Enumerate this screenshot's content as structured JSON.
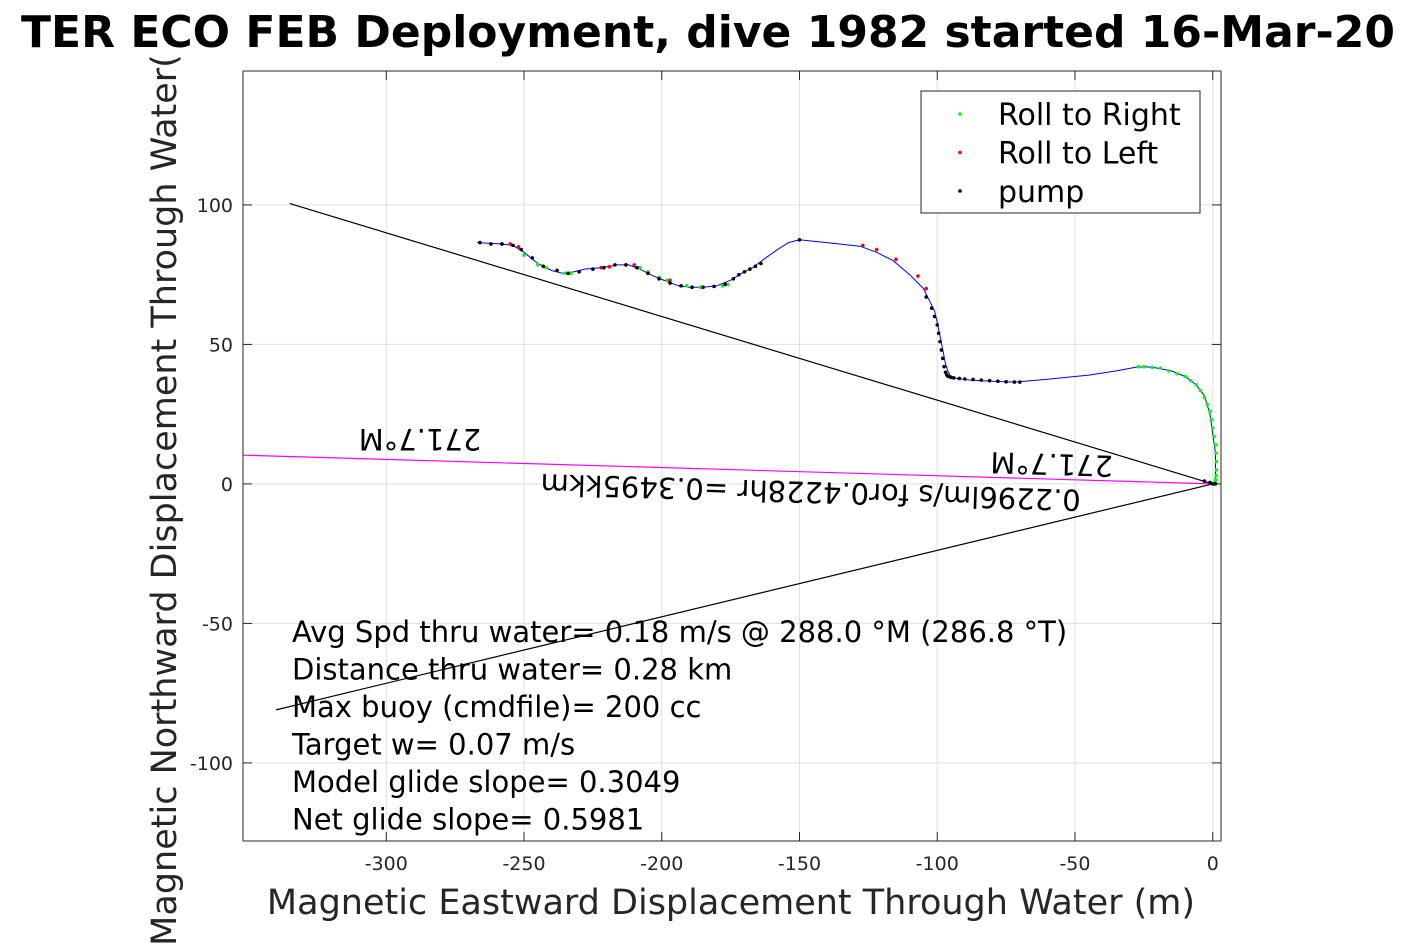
{
  "chart_data": {
    "type": "line",
    "title": "TER ECO FEB Deployment, dive 1982 started 16-Mar-20",
    "xlabel": "Magnetic Eastward Displacement Through Water (m)",
    "ylabel": "Magnetic Northward Displacement Through Water(",
    "xlim": [
      -352,
      3
    ],
    "ylim": [
      -128,
      148
    ],
    "xticks": [
      -300,
      -250,
      -200,
      -150,
      -100,
      -50,
      0
    ],
    "yticks": [
      -100,
      -50,
      0,
      50,
      100
    ],
    "xtick_labels": [
      "-300",
      "-250",
      "-200",
      "-150",
      "-100",
      "-50",
      "0"
    ],
    "ytick_labels": [
      "-100",
      "-50",
      "0",
      "50",
      "100"
    ],
    "grid": true,
    "legend_position": "top-right",
    "legend": [
      {
        "label": "Roll to Right",
        "color": "#00ff00"
      },
      {
        "label": "Roll to Left",
        "color": "#ff0000"
      },
      {
        "label": "pump",
        "color": "#000000"
      }
    ],
    "track_color": "#0000ff",
    "track": {
      "x": [
        -267,
        -258,
        -254,
        -250,
        -245,
        -240,
        -236,
        -232,
        -228,
        -222,
        -216,
        -212,
        -208,
        -203,
        -198,
        -194,
        -190,
        -185,
        -180,
        -175,
        -171,
        -167,
        -163,
        -158,
        -154,
        -150,
        -145,
        -140,
        -134,
        -128,
        -122,
        -116,
        -110,
        -105,
        -103,
        -101,
        -100,
        -99,
        -98,
        -97,
        -96,
        -95,
        -93,
        -88,
        -80,
        -72,
        -60,
        -45,
        -35,
        -28,
        -24,
        -20,
        -15,
        -10,
        -6,
        -3,
        -1,
        0,
        1,
        1,
        1,
        0
      ],
      "y": [
        86.5,
        86,
        85.5,
        83,
        79,
        76.5,
        75.5,
        76,
        77,
        77.5,
        78.5,
        78.5,
        77,
        74.5,
        72.5,
        71,
        70.5,
        70.5,
        71,
        73,
        75.5,
        77.5,
        80.5,
        84,
        86.5,
        87.5,
        87,
        86.5,
        85.8,
        85.2,
        83,
        80,
        75,
        70,
        66,
        62,
        58,
        53,
        48,
        43,
        40,
        38.5,
        37.8,
        37.2,
        36.8,
        36.5,
        37.5,
        39,
        40.5,
        41.8,
        42,
        41.5,
        40.5,
        38.5,
        35.5,
        31.5,
        25,
        18,
        11,
        5,
        1,
        0
      ]
    },
    "roll_right": {
      "x": [
        -250,
        -245,
        -242,
        -238,
        -235,
        -233,
        -208,
        -205,
        -201,
        -198,
        -191,
        -189,
        -186,
        -178,
        -176,
        -27,
        -25,
        -22,
        -19,
        -16,
        -13,
        -10,
        -8,
        -6,
        -4.5,
        -3,
        -2,
        -1,
        -0.5,
        0,
        0.5,
        1,
        1.2,
        1.3,
        1.3,
        1.2,
        1,
        0.8
      ],
      "y": [
        82,
        78.5,
        77.5,
        76.5,
        75.5,
        75.5,
        77.5,
        76,
        74,
        73,
        71,
        70.5,
        70.5,
        71,
        71.5,
        42,
        42,
        41.8,
        41.5,
        40.5,
        39.5,
        38.5,
        37,
        35.5,
        33.5,
        31,
        28.5,
        26,
        23,
        20,
        17,
        14,
        11,
        8,
        5,
        3,
        1.5,
        0.5
      ]
    },
    "roll_left": {
      "x": [
        -258,
        -255,
        -252,
        -222,
        -219,
        -213,
        -210,
        -197,
        -127,
        -122,
        -115,
        -107,
        -104,
        0.5
      ],
      "y": [
        86,
        86,
        85,
        77.5,
        77.8,
        78.5,
        78.5,
        73,
        85.5,
        84,
        80.5,
        74.5,
        70,
        0
      ]
    },
    "pump": {
      "x": [
        -266,
        -262,
        -258,
        -254,
        -251,
        -247,
        -243,
        -238,
        -234,
        -230,
        -225,
        -221,
        -217,
        -213,
        -209,
        -205,
        -201,
        -197,
        -193,
        -189,
        -185,
        -181,
        -177,
        -174,
        -172,
        -170,
        -168,
        -166,
        -164,
        -150,
        -104,
        -102,
        -101,
        -100,
        -99.5,
        -99,
        -98.5,
        -98,
        -97.5,
        -97,
        -96.5,
        -96,
        -95,
        -94,
        -92,
        -90,
        -87,
        -84,
        -81,
        -78,
        -75,
        -72,
        -70,
        -3,
        -1,
        0,
        1
      ],
      "y": [
        86.5,
        86,
        86,
        85.5,
        84,
        81,
        78,
        76.5,
        75.5,
        76,
        77,
        77.5,
        78.5,
        78.5,
        77.5,
        75.5,
        73.5,
        72,
        71,
        70.5,
        70.5,
        70.8,
        71.5,
        73.5,
        75,
        76,
        77,
        78,
        79,
        87.5,
        67,
        63,
        60,
        57,
        54,
        51,
        48,
        45,
        42,
        40,
        39,
        38.5,
        38.2,
        38,
        37.8,
        37.6,
        37.4,
        37.2,
        37,
        36.8,
        36.6,
        36.5,
        36.5,
        1,
        0.5,
        0,
        0
      ]
    },
    "reference_lines": [
      {
        "x": [
          -335,
          0
        ],
        "y": [
          100.5,
          0
        ],
        "color": "#000000"
      },
      {
        "x": [
          -340,
          0
        ],
        "y": [
          -81,
          0
        ],
        "color": "#000000"
      },
      {
        "x": [
          -352,
          0
        ],
        "y": [
          10.3,
          0
        ],
        "color": "#ff00ff"
      }
    ],
    "arrow_label_primary": "0.2296lm/s for0.4228hr =0.3495kkm",
    "arrow_label_secondary": "271.7°M",
    "arrow_label_far": "271.7°M",
    "annotations": [
      "Avg Spd thru water=  0.18 m/s @ 288.0 °M (286.8 °T)",
      "Distance thru water=  0.28 km",
      "Max buoy (cmdfile)= 200 cc",
      "Target w= 0.07 m/s",
      "Model glide slope= 0.3049",
      "Net glide slope= 0.5981"
    ]
  }
}
